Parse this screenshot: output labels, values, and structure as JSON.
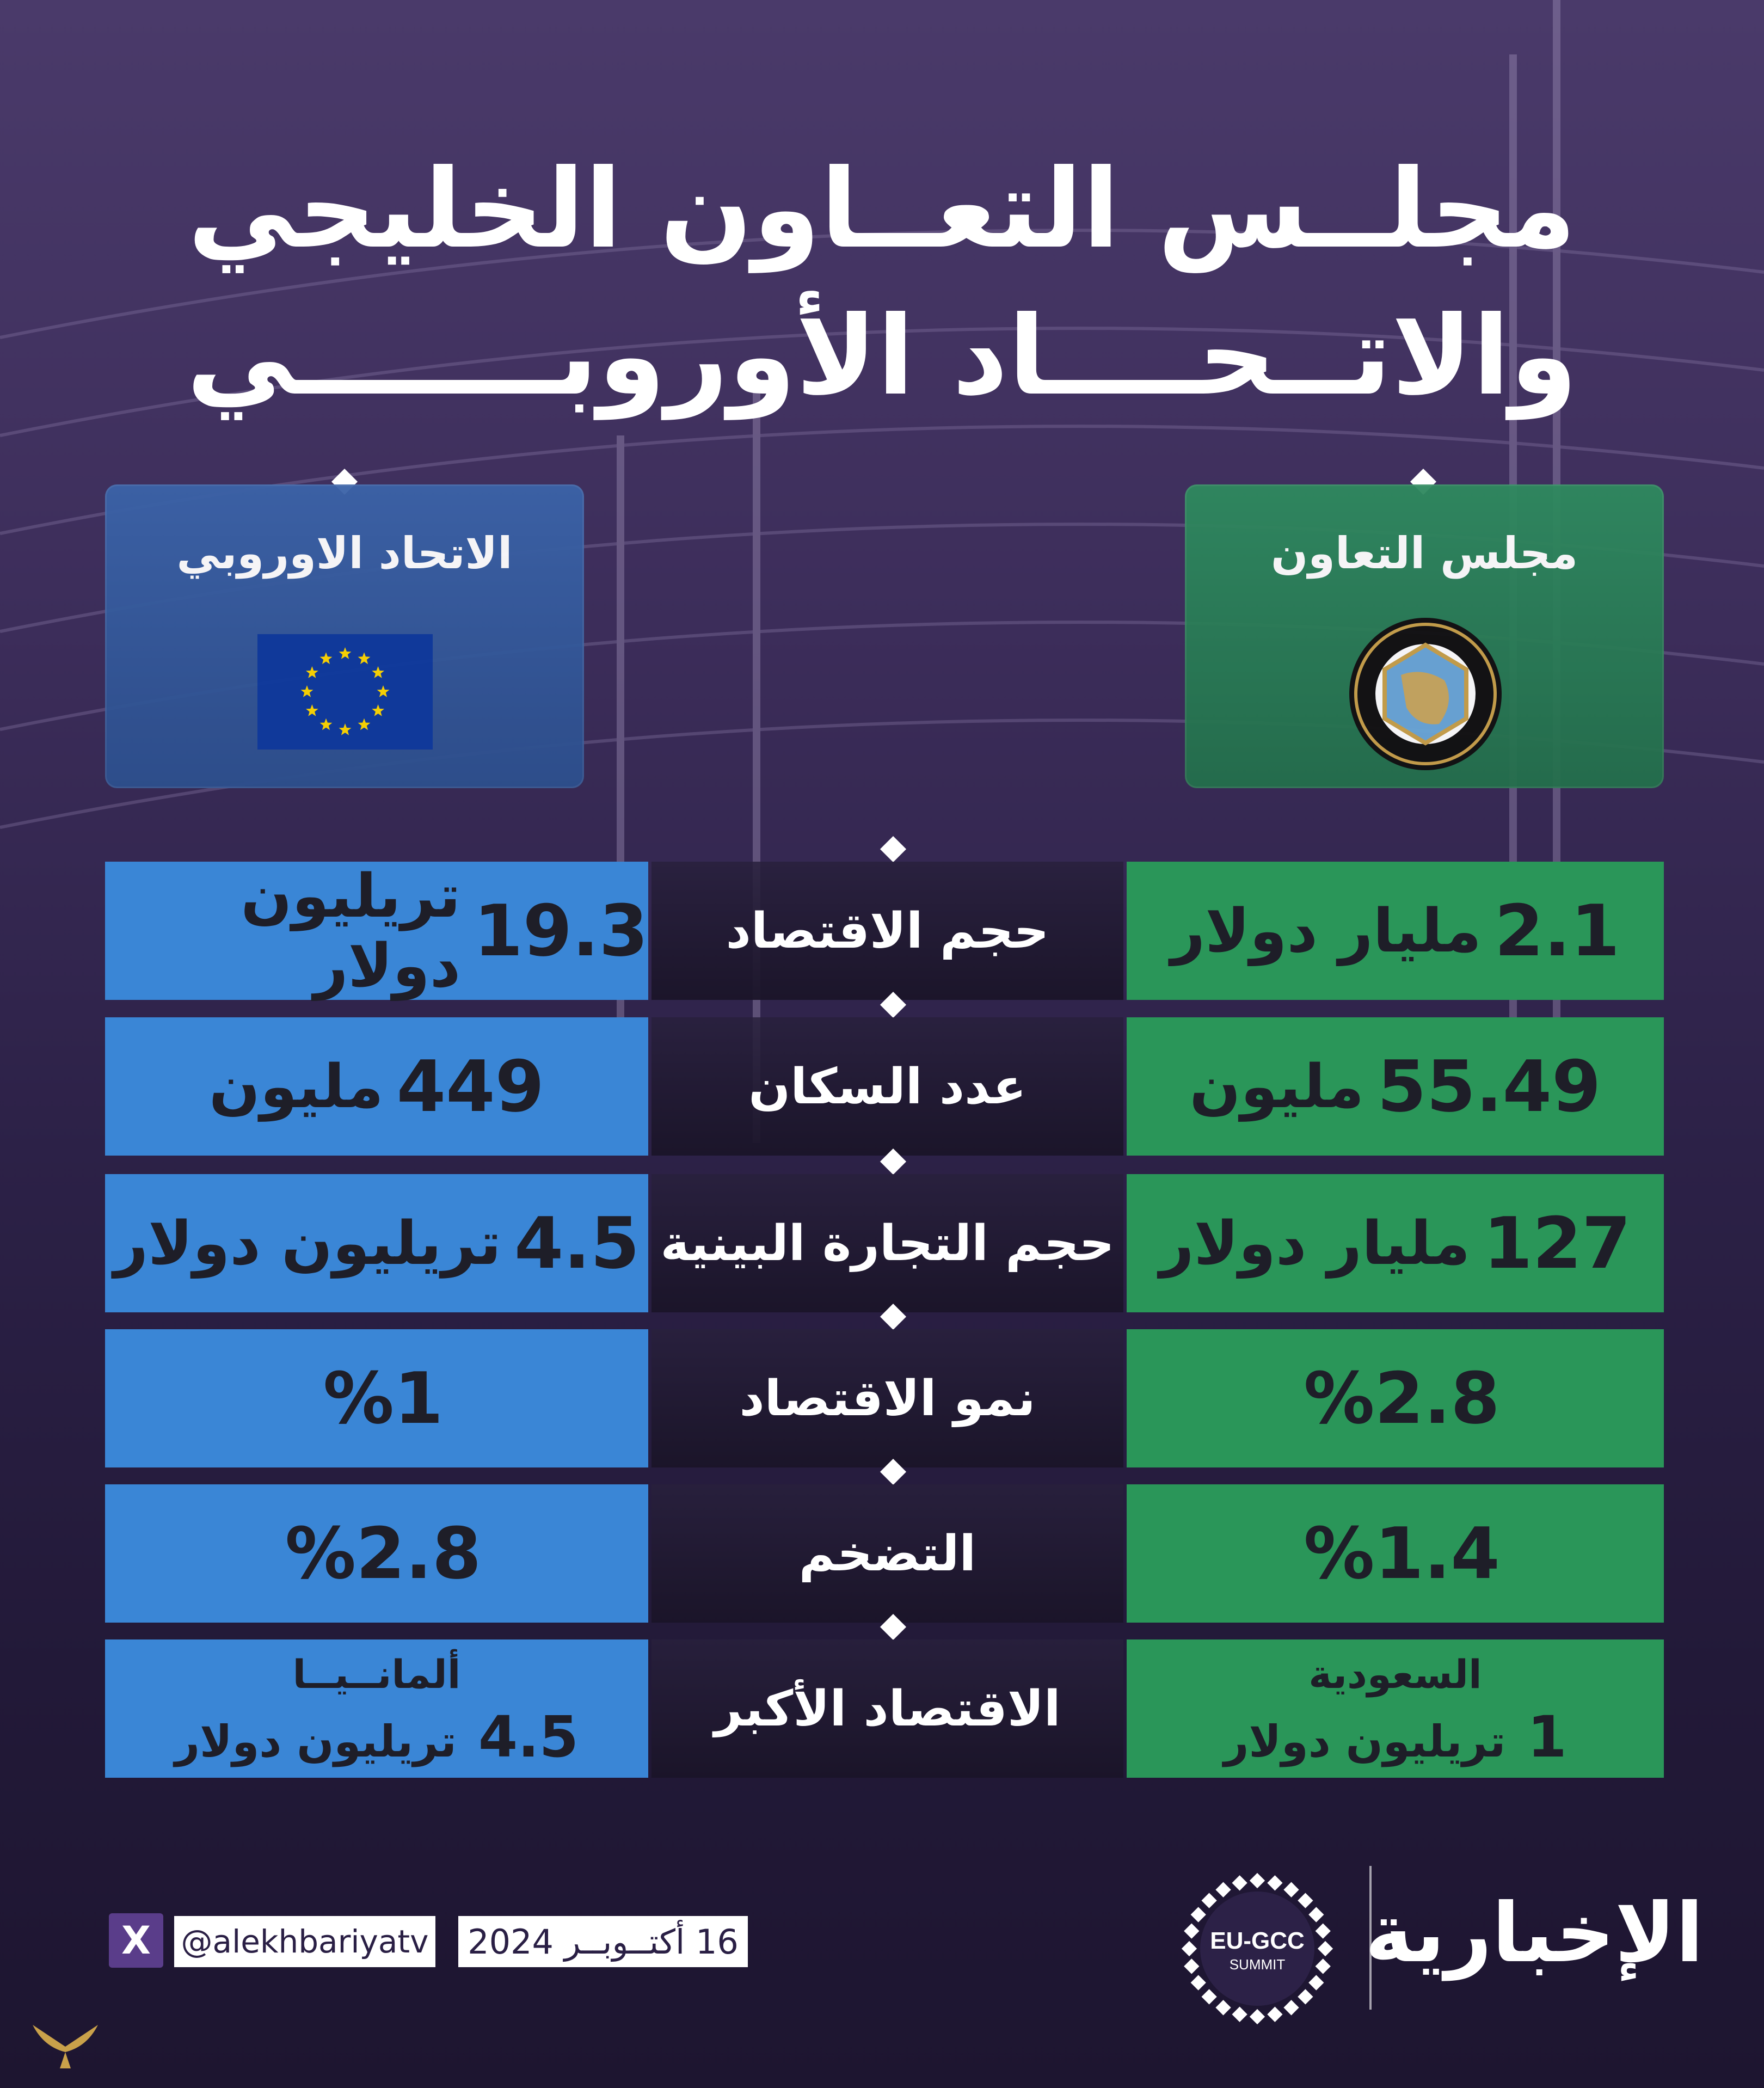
{
  "title": {
    "line1": "مجلــس التعــاون الخليجي",
    "line2": "والاتــحــــاد الأوروبـــــــي"
  },
  "headers": {
    "eu": {
      "name": "الاتحاد الاوروبي",
      "icon": "eu-flag-icon",
      "color": "#3a6ab0"
    },
    "gcc": {
      "name": "مجلس التعاون",
      "icon": "gcc-seal-icon",
      "color": "#2e8a5e"
    }
  },
  "rows": [
    {
      "label": "حجم الاقتصاد",
      "eu": {
        "num": "19.3",
        "unit": "تريليون دولار"
      },
      "gcc": {
        "num": "2.1",
        "unit": "مليار دولار"
      }
    },
    {
      "label": "عدد السكان",
      "eu": {
        "num": "449",
        "unit": "مليون"
      },
      "gcc": {
        "num": "55.49",
        "unit": "مليون"
      }
    },
    {
      "label": "حجم التجارة البينية",
      "eu": {
        "num": "4.5",
        "unit": "تريليون دولار"
      },
      "gcc": {
        "num": "127",
        "unit": "مليار دولار"
      }
    },
    {
      "label": "نمو الاقتصاد",
      "eu": {
        "num": "%1",
        "unit": ""
      },
      "gcc": {
        "num": "%2.8",
        "unit": ""
      }
    },
    {
      "label": "التضخم",
      "eu": {
        "num": "%2.8",
        "unit": ""
      },
      "gcc": {
        "num": "%1.4",
        "unit": ""
      }
    },
    {
      "label": "الاقتصاد الأكبر",
      "eu": {
        "country": "ألمانــيــا",
        "num": "4.5",
        "unit": "تريليون دولار"
      },
      "gcc": {
        "country": "السعودية",
        "num": "1",
        "unit": "تريليون دولار"
      }
    }
  ],
  "footer": {
    "x_icon": "x-logo-icon",
    "x_label": "X",
    "handle": "@alekhbariyatv",
    "date": "16 أكتــوبــر 2024",
    "summit_line1": "EU-GCC",
    "summit_line2": "SUMMIT",
    "brand": "الإخبارية"
  },
  "colors": {
    "eu_cell": "#3a86d6",
    "gcc_cell": "#2a9659",
    "background": "#2c2147"
  }
}
